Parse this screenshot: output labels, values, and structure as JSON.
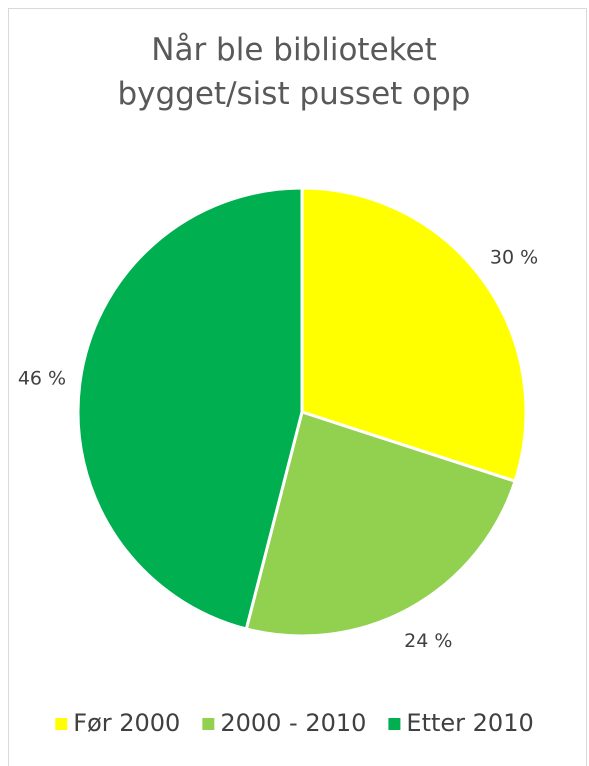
{
  "chart_data": {
    "type": "pie",
    "title": "Når ble biblioteket bygget/sist pusset opp",
    "categories": [
      "Før 2000",
      "2000 - 2010",
      "Etter 2010"
    ],
    "values": [
      30,
      24,
      46
    ],
    "value_labels": [
      "30 %",
      "24 %",
      "46 %"
    ],
    "colors": [
      "#ffff00",
      "#92d050",
      "#00b050"
    ],
    "legend": "bottom"
  }
}
